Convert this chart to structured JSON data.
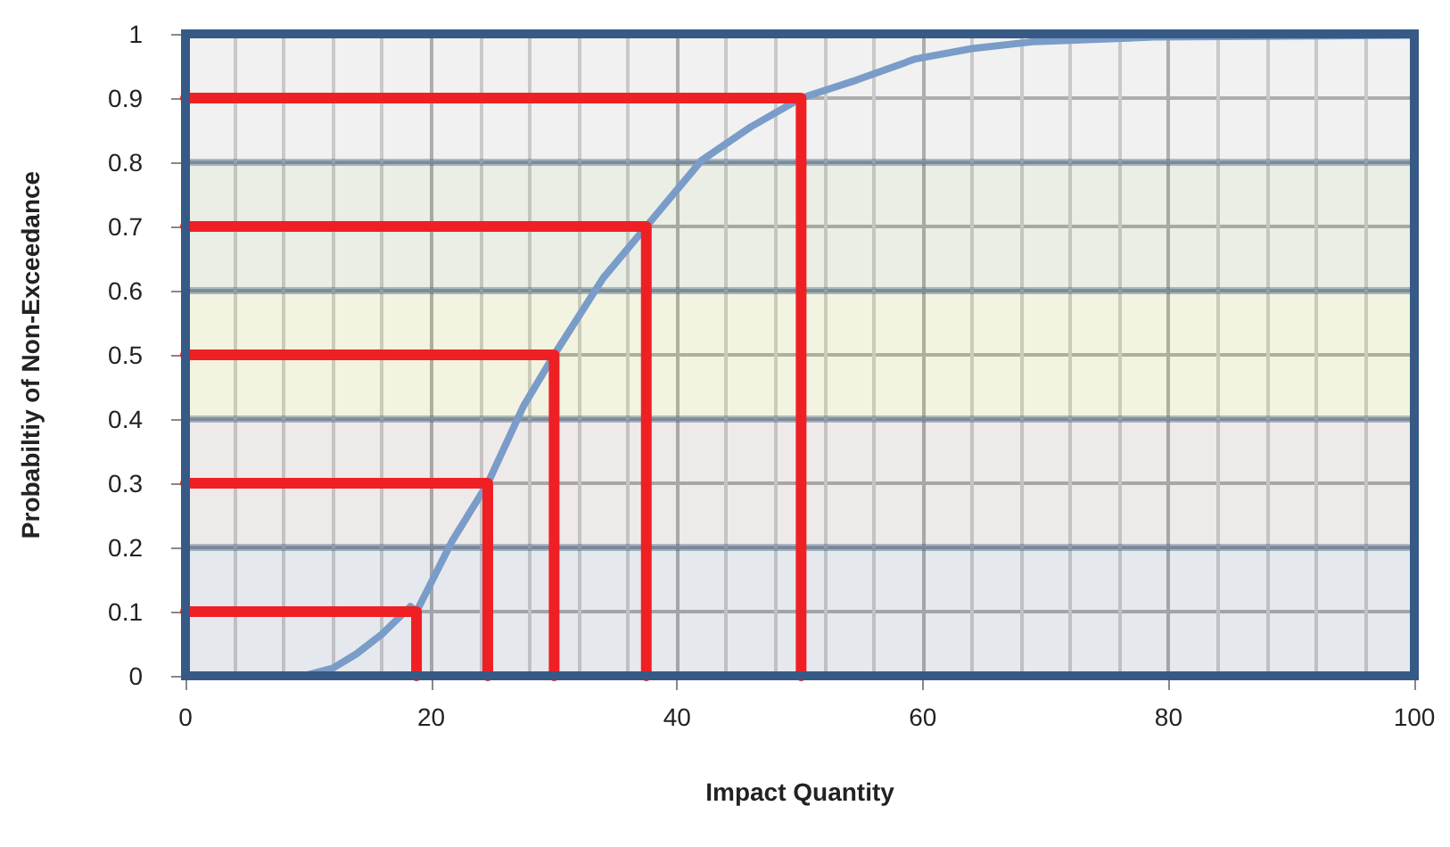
{
  "chart_data": {
    "type": "line",
    "xlabel": "Impact Quantity",
    "ylabel": "Probabiltiy of Non-Exceedance",
    "xlim": [
      0,
      100
    ],
    "xticks": [
      0,
      20,
      40,
      60,
      80,
      100
    ],
    "ylim": [
      0,
      1
    ],
    "yticks": [
      0,
      0.1,
      0.2,
      0.3,
      0.4,
      0.5,
      0.6,
      0.7,
      0.8,
      0.9,
      1
    ],
    "grid": true,
    "marker": "none",
    "line_style": "solid",
    "series": [
      {
        "color": "#7a9cc8",
        "x": [
          9.6,
          12,
          13.9,
          16,
          18.3,
          18.8,
          21.7,
          24.6,
          27.5,
          30,
          34,
          37.5,
          42,
          46,
          50.1,
          54.6,
          59.4,
          64,
          69.1,
          78.8,
          93.3,
          100
        ],
        "values": [
          0,
          0.012,
          0.034,
          0.065,
          0.108,
          0.1,
          0.21,
          0.3,
          0.42,
          0.5,
          0.62,
          0.7,
          0.803,
          0.855,
          0.9,
          0.928,
          0.961,
          0.977,
          0.988,
          0.995,
          0.997,
          0.998
        ]
      },
      {
        "color": "#ee2024",
        "x": [
          0,
          18.8,
          18.8
        ],
        "values": [
          0.1,
          0.1,
          0
        ]
      },
      {
        "color": "#ee2024",
        "x": [
          0,
          24.6,
          24.6
        ],
        "values": [
          0.3,
          0.3,
          0
        ]
      },
      {
        "color": "#ee2024",
        "x": [
          0,
          30,
          30
        ],
        "values": [
          0.5,
          0.5,
          0
        ]
      },
      {
        "color": "#ee2024",
        "x": [
          0,
          37.5,
          37.5
        ],
        "values": [
          0.7,
          0.7,
          0
        ]
      },
      {
        "color": "#ee2024",
        "x": [
          0,
          50.1,
          50.1
        ],
        "values": [
          0.9,
          0.9,
          0
        ]
      }
    ],
    "bands": [
      {
        "axis": "y",
        "from": 0,
        "to": 0.2,
        "color": "#8a9bb0"
      },
      {
        "axis": "y",
        "from": 0.2,
        "to": 0.4,
        "color": "#b8a0a0"
      },
      {
        "axis": "y",
        "from": 0.4,
        "to": 0.6,
        "color": "#c8c878"
      },
      {
        "axis": "y",
        "from": 0.6,
        "to": 0.8,
        "color": "#a0b088"
      },
      {
        "axis": "y",
        "from": 0.8,
        "to": 1,
        "color": "#c0c0c0"
      }
    ]
  }
}
